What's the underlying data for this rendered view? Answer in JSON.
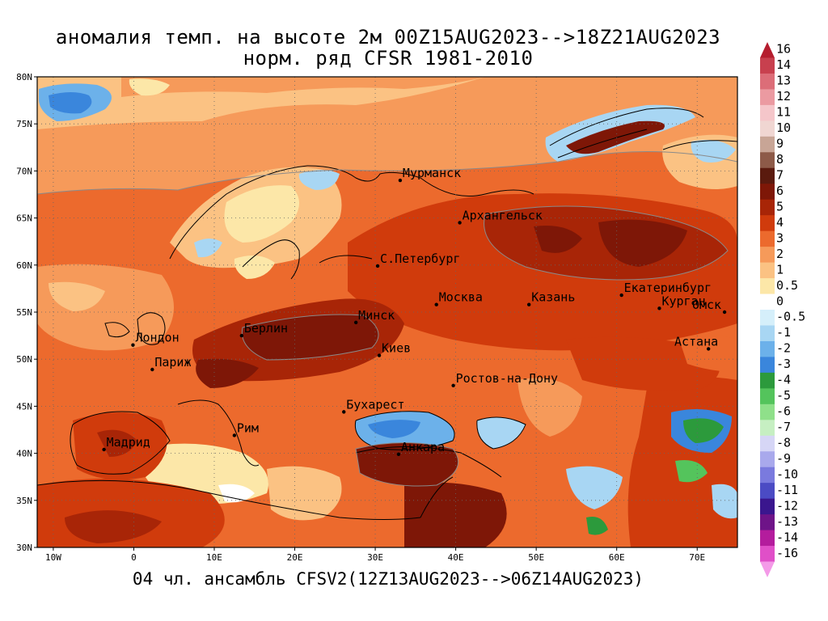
{
  "title": {
    "line1": "аномалия темп. на высоте 2м 00Z15AUG2023-->18Z21AUG2023",
    "line2": "норм. ряд CFSR 1981-2010"
  },
  "footer": "04 чл. ансамбль CFSV2(12Z13AUG2023-->06Z14AUG2023)",
  "map": {
    "lat_labels": [
      "80N",
      "75N",
      "70N",
      "65N",
      "60N",
      "55N",
      "50N",
      "45N",
      "40N",
      "35N",
      "30N"
    ],
    "lon_labels": [
      "10W",
      "0",
      "10E",
      "20E",
      "30E",
      "40E",
      "50E",
      "60E",
      "70E"
    ],
    "lat_range": [
      30,
      80
    ],
    "lon_range": [
      -12,
      75
    ],
    "cities": [
      {
        "name": "Мурманск",
        "lon": 33.1,
        "lat": 69.0
      },
      {
        "name": "Архангельск",
        "lon": 40.5,
        "lat": 64.5
      },
      {
        "name": "С.Петербург",
        "lon": 30.3,
        "lat": 59.9
      },
      {
        "name": "Москва",
        "lon": 37.6,
        "lat": 55.8
      },
      {
        "name": "Казань",
        "lon": 49.1,
        "lat": 55.8
      },
      {
        "name": "Екатеринбург",
        "lon": 60.6,
        "lat": 56.8
      },
      {
        "name": "Курган",
        "lon": 65.3,
        "lat": 55.4
      },
      {
        "name": "Омск",
        "lon": 73.4,
        "lat": 55.0
      },
      {
        "name": "Астана",
        "lon": 71.4,
        "lat": 51.1
      },
      {
        "name": "Минск",
        "lon": 27.6,
        "lat": 53.9
      },
      {
        "name": "Берлин",
        "lon": 13.4,
        "lat": 52.5
      },
      {
        "name": "Лондон",
        "lon": -0.1,
        "lat": 51.5
      },
      {
        "name": "Париж",
        "lon": 2.3,
        "lat": 48.9
      },
      {
        "name": "Киев",
        "lon": 30.5,
        "lat": 50.4
      },
      {
        "name": "Ростов-на-Дону",
        "lon": 39.7,
        "lat": 47.2
      },
      {
        "name": "Бухарест",
        "lon": 26.1,
        "lat": 44.4
      },
      {
        "name": "Рим",
        "lon": 12.5,
        "lat": 41.9
      },
      {
        "name": "Мадрид",
        "lon": -3.7,
        "lat": 40.4
      },
      {
        "name": "Анкара",
        "lon": 32.9,
        "lat": 39.9
      }
    ]
  },
  "legend": {
    "labels": [
      "16",
      "14",
      "13",
      "12",
      "11",
      "10",
      "9",
      "8",
      "7",
      "6",
      "5",
      "4",
      "3",
      "2",
      "1",
      "0.5",
      "0",
      "-0.5",
      "-1",
      "-2",
      "-3",
      "-4",
      "-5",
      "-6",
      "-7",
      "-8",
      "-9",
      "-10",
      "-11",
      "-12",
      "-13",
      "-14",
      "-16"
    ],
    "colors": [
      "#b51d2e",
      "#c8404e",
      "#dc6d78",
      "#eb9aa1",
      "#f5c6ca",
      "#f0d6d2",
      "#c8a596",
      "#8d5a48",
      "#5a1a0e",
      "#7e1707",
      "#a82507",
      "#d03b0c",
      "#ec6a2d",
      "#f69a5a",
      "#fbc283",
      "#fce7a8",
      "#ffffff",
      "#d5effa",
      "#a8d6f3",
      "#6cb1ea",
      "#3a86dc",
      "#2c9a3c",
      "#54c45c",
      "#8fe08a",
      "#c6efc2",
      "#d6d6f6",
      "#a9a9ec",
      "#7a7ade",
      "#4b4bc4",
      "#3a168e",
      "#6e1488",
      "#b41c9d",
      "#e04fc8",
      "#f49ae8"
    ]
  }
}
